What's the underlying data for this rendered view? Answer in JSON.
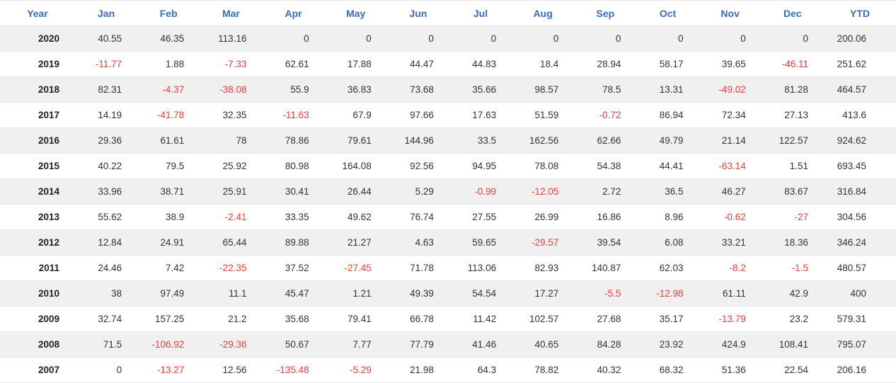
{
  "chart_data": {
    "type": "table",
    "columns": [
      "Year",
      "Jan",
      "Feb",
      "Mar",
      "Apr",
      "May",
      "Jun",
      "Jul",
      "Aug",
      "Sep",
      "Oct",
      "Nov",
      "Dec",
      "YTD"
    ],
    "rows": [
      {
        "year": 2020,
        "values": [
          40.55,
          46.35,
          113.16,
          0,
          0,
          0,
          0,
          0,
          0,
          0,
          0,
          0,
          200.06
        ]
      },
      {
        "year": 2019,
        "values": [
          -11.77,
          1.88,
          -7.33,
          62.61,
          17.88,
          44.47,
          44.83,
          18.4,
          28.94,
          58.17,
          39.65,
          -46.11,
          251.62
        ]
      },
      {
        "year": 2018,
        "values": [
          82.31,
          -4.37,
          -38.08,
          55.9,
          36.83,
          73.68,
          35.66,
          98.57,
          78.5,
          13.31,
          -49.02,
          81.28,
          464.57
        ]
      },
      {
        "year": 2017,
        "values": [
          14.19,
          -41.78,
          32.35,
          -11.63,
          67.9,
          97.66,
          17.63,
          51.59,
          -0.72,
          86.94,
          72.34,
          27.13,
          413.6
        ]
      },
      {
        "year": 2016,
        "values": [
          29.36,
          61.61,
          78,
          78.86,
          79.61,
          144.96,
          33.5,
          162.56,
          62.66,
          49.79,
          21.14,
          122.57,
          924.62
        ]
      },
      {
        "year": 2015,
        "values": [
          40.22,
          79.5,
          25.92,
          80.98,
          164.08,
          92.56,
          94.95,
          78.08,
          54.38,
          44.41,
          -63.14,
          1.51,
          693.45
        ]
      },
      {
        "year": 2014,
        "values": [
          33.96,
          38.71,
          25.91,
          30.41,
          26.44,
          5.29,
          -0.99,
          -12.05,
          2.72,
          36.5,
          46.27,
          83.67,
          316.84
        ]
      },
      {
        "year": 2013,
        "values": [
          55.62,
          38.9,
          -2.41,
          33.35,
          49.62,
          76.74,
          27.55,
          26.99,
          16.86,
          8.96,
          -0.62,
          -27,
          304.56
        ]
      },
      {
        "year": 2012,
        "values": [
          12.84,
          24.91,
          65.44,
          89.88,
          21.27,
          4.63,
          59.65,
          -29.57,
          39.54,
          6.08,
          33.21,
          18.36,
          346.24
        ]
      },
      {
        "year": 2011,
        "values": [
          24.46,
          7.42,
          -22.35,
          37.52,
          -27.45,
          71.78,
          113.06,
          82.93,
          140.87,
          62.03,
          -8.2,
          -1.5,
          480.57
        ]
      },
      {
        "year": 2010,
        "values": [
          38,
          97.49,
          11.1,
          45.47,
          1.21,
          49.39,
          54.54,
          17.27,
          -5.5,
          -12.98,
          61.11,
          42.9,
          400
        ]
      },
      {
        "year": 2009,
        "values": [
          32.74,
          157.25,
          21.2,
          35.68,
          79.41,
          66.78,
          11.42,
          102.57,
          27.68,
          35.17,
          -13.79,
          23.2,
          579.31
        ]
      },
      {
        "year": 2008,
        "values": [
          71.5,
          -106.92,
          -29.36,
          50.67,
          7.77,
          77.79,
          41.46,
          40.65,
          84.28,
          23.92,
          424.9,
          108.41,
          795.07
        ]
      },
      {
        "year": 2007,
        "values": [
          0,
          -13.27,
          12.56,
          -135.48,
          -5.29,
          21.98,
          64.3,
          78.82,
          40.32,
          68.32,
          51.36,
          22.54,
          206.16
        ]
      }
    ]
  },
  "colors": {
    "header_text": "#3a6cb4",
    "negative_value": "#f03c3c",
    "positive_value": "#333333",
    "row_stripe": "#f0f0f0",
    "row_border": "#e8e8e8"
  }
}
